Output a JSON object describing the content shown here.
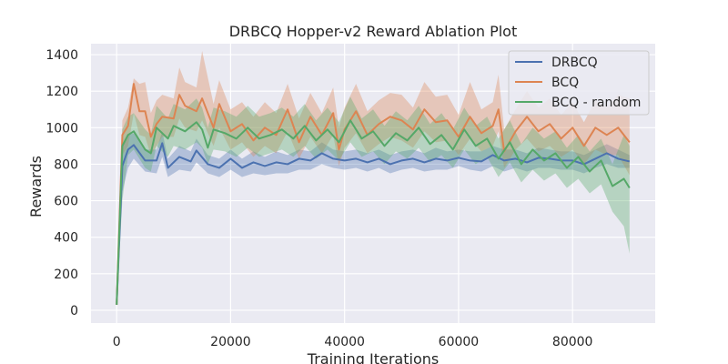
{
  "chart_data": {
    "type": "line",
    "title": "DRBCQ Hopper-v2 Reward Ablation Plot",
    "xlabel": "Training Iterations",
    "ylabel": "Rewards",
    "xlim": [
      -4500,
      94500
    ],
    "ylim": [
      -70,
      1460
    ],
    "xticks": [
      0,
      20000,
      40000,
      60000,
      80000
    ],
    "xtick_labels": [
      "0",
      "20000",
      "40000",
      "60000",
      "80000"
    ],
    "yticks": [
      0,
      200,
      400,
      600,
      800,
      1000,
      1200,
      1400
    ],
    "ytick_labels": [
      "0",
      "200",
      "400",
      "600",
      "800",
      "1000",
      "1200",
      "1400"
    ],
    "grid": true,
    "legend": "top-right",
    "series": [
      {
        "name": "DRBCQ",
        "color": "#4c72b0",
        "x": [
          0,
          1000,
          2000,
          3000,
          5000,
          7000,
          8000,
          9000,
          11000,
          13000,
          14000,
          16000,
          18000,
          20000,
          22000,
          24000,
          26000,
          28000,
          30000,
          32000,
          34000,
          36000,
          38000,
          40000,
          42000,
          44000,
          46000,
          48000,
          50000,
          52000,
          54000,
          56000,
          58000,
          60000,
          62000,
          64000,
          66000,
          68000,
          70000,
          72000,
          74000,
          76000,
          78000,
          80000,
          82000,
          84000,
          86000,
          88000,
          90000
        ],
        "y": [
          30,
          790,
          880,
          905,
          820,
          820,
          915,
          780,
          840,
          815,
          875,
          800,
          780,
          830,
          780,
          810,
          790,
          810,
          800,
          830,
          820,
          860,
          830,
          820,
          830,
          810,
          830,
          800,
          820,
          830,
          810,
          830,
          820,
          835,
          820,
          815,
          850,
          820,
          830,
          810,
          835,
          830,
          820,
          820,
          800,
          830,
          860,
          830,
          815
        ],
        "lower": [
          20,
          650,
          780,
          830,
          760,
          750,
          840,
          730,
          770,
          760,
          810,
          750,
          730,
          770,
          730,
          750,
          740,
          750,
          750,
          770,
          770,
          800,
          780,
          770,
          780,
          760,
          780,
          750,
          770,
          780,
          760,
          770,
          770,
          790,
          770,
          760,
          790,
          760,
          780,
          760,
          780,
          780,
          770,
          770,
          750,
          780,
          800,
          780,
          780
        ],
        "upper": [
          40,
          900,
          960,
          970,
          880,
          880,
          980,
          830,
          900,
          870,
          940,
          850,
          830,
          880,
          830,
          870,
          840,
          870,
          850,
          880,
          870,
          920,
          880,
          870,
          880,
          860,
          880,
          850,
          870,
          880,
          860,
          890,
          870,
          880,
          870,
          870,
          900,
          880,
          880,
          860,
          890,
          880,
          870,
          870,
          850,
          880,
          910,
          880,
          850
        ]
      },
      {
        "name": "BCQ",
        "color": "#dd8452",
        "x": [
          0,
          1000,
          2000,
          3000,
          4000,
          5000,
          6000,
          7000,
          8000,
          10000,
          11000,
          12000,
          14000,
          15000,
          17000,
          18000,
          20000,
          22000,
          24000,
          26000,
          28000,
          30000,
          32000,
          34000,
          36000,
          38000,
          39000,
          40000,
          42000,
          44000,
          46000,
          48000,
          50000,
          52000,
          54000,
          56000,
          58000,
          60000,
          62000,
          64000,
          66000,
          67000,
          68000,
          70000,
          72000,
          74000,
          76000,
          78000,
          80000,
          82000,
          84000,
          86000,
          88000,
          90000
        ],
        "y": [
          30,
          960,
          1010,
          1240,
          1090,
          1090,
          950,
          1020,
          1060,
          1050,
          1180,
          1120,
          1090,
          1160,
          1000,
          1130,
          980,
          1020,
          930,
          1000,
          960,
          1100,
          920,
          1060,
          960,
          1080,
          880,
          990,
          1090,
          960,
          1020,
          1060,
          1040,
          990,
          1100,
          1030,
          1040,
          950,
          1060,
          970,
          1010,
          1100,
          870,
          980,
          1060,
          980,
          1020,
          940,
          1000,
          900,
          1000,
          960,
          1000,
          920
        ],
        "lower": [
          20,
          850,
          900,
          1080,
          960,
          950,
          850,
          900,
          950,
          950,
          1050,
          1000,
          980,
          1040,
          900,
          1000,
          880,
          920,
          840,
          900,
          860,
          980,
          830,
          950,
          860,
          960,
          790,
          890,
          970,
          860,
          910,
          950,
          930,
          890,
          980,
          920,
          930,
          850,
          940,
          870,
          900,
          980,
          780,
          880,
          940,
          870,
          900,
          840,
          880,
          800,
          880,
          850,
          850,
          740
        ],
        "upper": [
          40,
          1040,
          1110,
          1270,
          1240,
          1250,
          1080,
          1150,
          1180,
          1160,
          1330,
          1250,
          1220,
          1420,
          1130,
          1260,
          1100,
          1140,
          1060,
          1140,
          1080,
          1240,
          1050,
          1190,
          1080,
          1220,
          1000,
          1110,
          1240,
          1090,
          1150,
          1190,
          1180,
          1110,
          1250,
          1170,
          1180,
          1070,
          1250,
          1100,
          1140,
          1290,
          990,
          1100,
          1200,
          1110,
          1160,
          1070,
          1140,
          1030,
          1150,
          1110,
          1180,
          1160
        ]
      },
      {
        "name": "BCQ - random",
        "color": "#55a868",
        "x": [
          0,
          1000,
          2000,
          3000,
          5000,
          6000,
          7000,
          9000,
          10000,
          12000,
          14000,
          15000,
          16000,
          17000,
          19000,
          21000,
          23000,
          25000,
          27000,
          29000,
          31000,
          33000,
          35000,
          37000,
          39000,
          41000,
          43000,
          45000,
          47000,
          49000,
          51000,
          53000,
          55000,
          57000,
          59000,
          61000,
          63000,
          65000,
          67000,
          69000,
          71000,
          73000,
          75000,
          77000,
          79000,
          81000,
          83000,
          85000,
          87000,
          89000,
          90000
        ],
        "y": [
          30,
          900,
          960,
          980,
          880,
          860,
          1000,
          940,
          1010,
          980,
          1030,
          990,
          890,
          990,
          970,
          940,
          1000,
          940,
          960,
          990,
          940,
          1010,
          930,
          990,
          920,
          1040,
          940,
          980,
          900,
          970,
          930,
          1000,
          910,
          960,
          880,
          990,
          900,
          940,
          830,
          920,
          800,
          880,
          820,
          860,
          780,
          840,
          760,
          820,
          680,
          720,
          670
        ],
        "lower": [
          20,
          600,
          850,
          880,
          780,
          760,
          900,
          840,
          900,
          880,
          920,
          890,
          800,
          880,
          870,
          840,
          890,
          840,
          860,
          880,
          840,
          900,
          830,
          880,
          820,
          920,
          840,
          870,
          800,
          870,
          830,
          890,
          810,
          850,
          780,
          880,
          800,
          840,
          730,
          810,
          700,
          770,
          710,
          750,
          670,
          720,
          640,
          690,
          540,
          460,
          310
        ],
        "upper": [
          40,
          990,
          1060,
          1080,
          990,
          960,
          1120,
          1050,
          1130,
          1100,
          1160,
          1110,
          1000,
          1110,
          1090,
          1060,
          1120,
          1060,
          1080,
          1110,
          1060,
          1130,
          1040,
          1110,
          1030,
          1170,
          1050,
          1100,
          1010,
          1090,
          1040,
          1120,
          1020,
          1080,
          990,
          1110,
          1010,
          1060,
          940,
          1040,
          910,
          1000,
          940,
          980,
          890,
          960,
          870,
          940,
          800,
          960,
          900
        ]
      }
    ]
  }
}
